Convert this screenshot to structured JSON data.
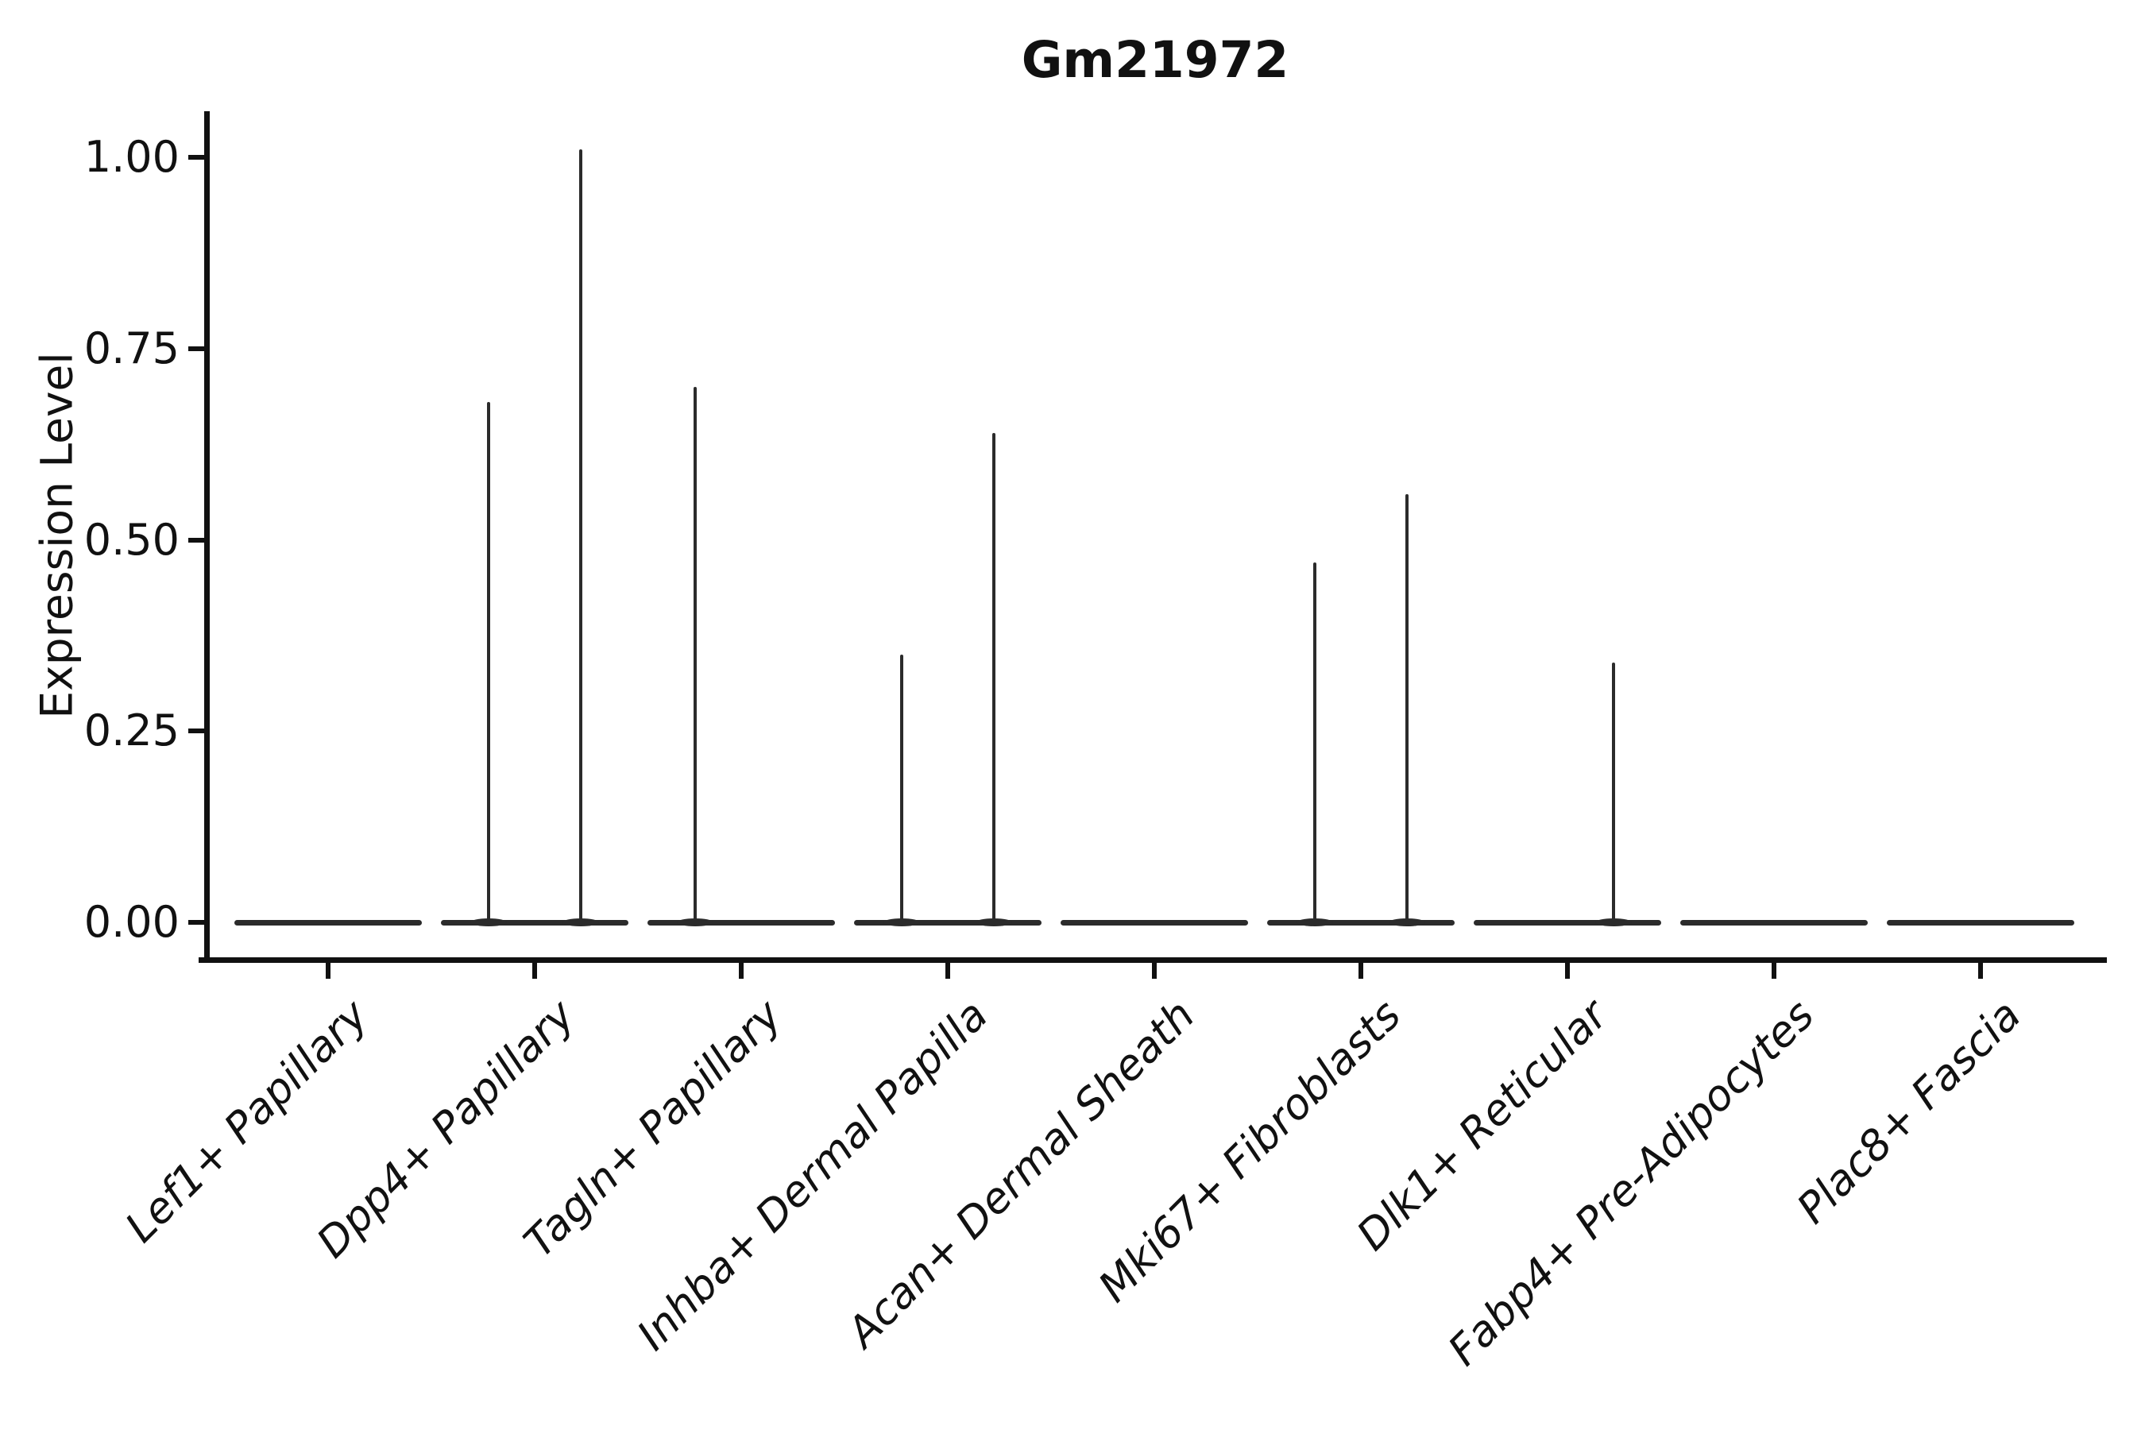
{
  "chart_data": {
    "type": "violin",
    "title": "Gm21972",
    "xlabel": "",
    "ylabel": "Expression Level",
    "ylim": [
      0,
      1.05
    ],
    "yticks": [
      {
        "value": 1.0,
        "label": "1.00"
      },
      {
        "value": 0.75,
        "label": "0.75"
      },
      {
        "value": 0.5,
        "label": "0.50"
      },
      {
        "value": 0.25,
        "label": "0.25"
      },
      {
        "value": 0.0,
        "label": "0.00"
      }
    ],
    "categories": [
      "Lef1+ Papillary",
      "Dpp4+ Papillary",
      "Tagln+ Papillary",
      "Inhba+ Dermal Papilla",
      "Acan+ Dermal Sheath",
      "Mki67+ Fibroblasts",
      "Dlk1+ Reticular",
      "Fabp4+ Pre-Adipocytes",
      "Plac8+ Fascia"
    ],
    "series": [
      {
        "name": "left-violin",
        "max_expression": [
          null,
          0.68,
          0.7,
          0.35,
          null,
          0.47,
          null,
          null,
          null
        ]
      },
      {
        "name": "right-violin",
        "max_expression": [
          null,
          1.01,
          null,
          0.64,
          null,
          0.56,
          0.34,
          null,
          null
        ]
      }
    ],
    "description": "Two violins per category, all density mass at 0 (flat baseline) with thin spikes up to the max expression value.",
    "legend": "none",
    "grid": false,
    "colors": {
      "violin_stroke": "#2b2b2b",
      "axis": "#111111",
      "text": "#111111",
      "background": "#ffffff"
    }
  }
}
